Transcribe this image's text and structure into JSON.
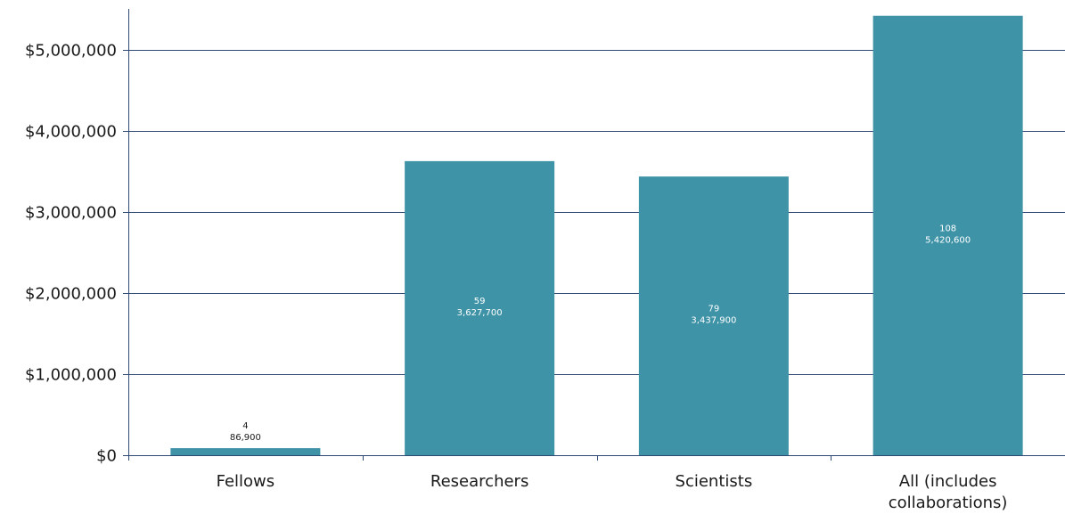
{
  "chart_data": {
    "type": "bar",
    "categories": [
      "Fellows",
      "Researchers",
      "Scientists",
      "All (includes collaborations)"
    ],
    "category_label_lines": [
      [
        "Fellows"
      ],
      [
        "Researchers"
      ],
      [
        "Scientists"
      ],
      [
        "All (includes",
        "collaborations)"
      ]
    ],
    "values": [
      86900,
      3627700,
      3437900,
      5420600
    ],
    "counts": [
      4,
      59,
      79,
      108
    ],
    "value_labels": [
      "86,900",
      "3,627,700",
      "3,437,900",
      "5,420,600"
    ],
    "count_labels": [
      "4",
      "59",
      "79",
      "108"
    ],
    "y_ticks": [
      0,
      1000000,
      2000000,
      3000000,
      4000000,
      5000000
    ],
    "y_tick_labels": [
      "$0",
      "$1,000,000",
      "$2,000,000",
      "$3,000,000",
      "$4,000,000",
      "$5,000,000"
    ],
    "ylim": [
      0,
      5600000
    ],
    "grid": true,
    "legend": "none",
    "title": "",
    "xlabel": "",
    "ylabel": "",
    "colors": {
      "bar": "#3f93a7",
      "grid": "#2e4a73",
      "axis": "#2e4a73",
      "label_inside": "#ffffff",
      "label_outside": "#1a1a1a"
    }
  }
}
